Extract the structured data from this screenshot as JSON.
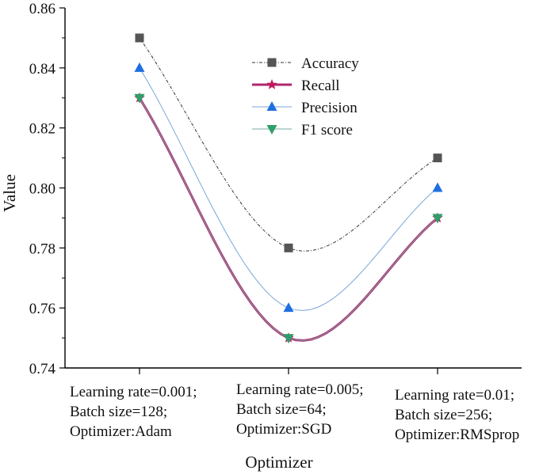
{
  "chart_data": {
    "type": "line",
    "title": "",
    "xlabel": "Optimizer",
    "ylabel": "Value",
    "ylim": [
      0.74,
      0.86
    ],
    "yticks": [
      0.74,
      0.76,
      0.78,
      0.8,
      0.82,
      0.84,
      0.86
    ],
    "ytick_labels": [
      "0.74",
      "0.76",
      "0.78",
      "0.80",
      "0.82",
      "0.84",
      "0.86"
    ],
    "grid": false,
    "legend_position": "top-center",
    "categories": [
      [
        "Learning rate=0.001;",
        "Batch size=128;",
        "Optimizer:Adam"
      ],
      [
        "Learning rate=0.005;",
        "Batch size=64;",
        "Optimizer:SGD"
      ],
      [
        "Learning rate=0.01;",
        "Batch size=256;",
        "Optimizer:RMSprop"
      ]
    ],
    "series": [
      {
        "name": "Accuracy",
        "values": [
          0.85,
          0.78,
          0.81
        ],
        "color": "#333333",
        "marker": "square",
        "line": "dash-dot",
        "marker_color": "#555555"
      },
      {
        "name": "Recall",
        "values": [
          0.83,
          0.75,
          0.79
        ],
        "color": "#b0246e",
        "marker": "star",
        "line": "solid-thick",
        "marker_color": "#c2185b"
      },
      {
        "name": "Precision",
        "values": [
          0.84,
          0.76,
          0.8
        ],
        "color": "#7aa6d6",
        "marker": "triangle-up",
        "line": "solid-thin",
        "marker_color": "#1f6fe0"
      },
      {
        "name": "F1 score",
        "values": [
          0.83,
          0.75,
          0.79
        ],
        "color": "#78a9a0",
        "marker": "triangle-down",
        "line": "solid-thin",
        "marker_color": "#2e9e6a"
      }
    ]
  }
}
